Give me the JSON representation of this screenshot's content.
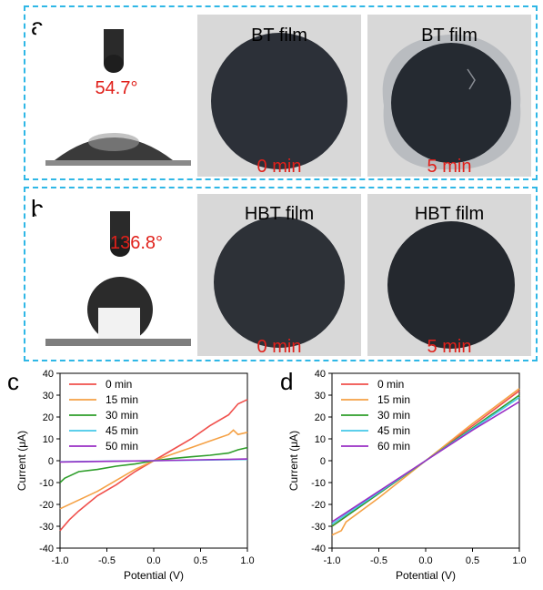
{
  "colors": {
    "panel_border": "#2fb7e6",
    "annotation_red": "#e0201a",
    "film_dark": "#2b2f36",
    "paper_bg": "#d6d6d6"
  },
  "panel_a": {
    "letter": "a",
    "contact_angle": "54.7°",
    "photos": [
      {
        "label": "BT film",
        "time": "0 min"
      },
      {
        "label": "BT film",
        "time": "5 min"
      }
    ]
  },
  "panel_b": {
    "letter": "b",
    "contact_angle": "136.8°",
    "photos": [
      {
        "label": "HBT film",
        "time": "0 min"
      },
      {
        "label": "HBT film",
        "time": "5 min"
      }
    ]
  },
  "chart_data": [
    {
      "panel": "c",
      "type": "line",
      "xlabel": "Potential (V)",
      "ylabel": "Current (μA)",
      "xlim": [
        -1.0,
        1.0
      ],
      "ylim": [
        -40,
        40
      ],
      "xticks": [
        "-1.0",
        "-0.5",
        "0.0",
        "0.5",
        "1.0"
      ],
      "yticks": [
        "-40",
        "-30",
        "-20",
        "-10",
        "0",
        "10",
        "20",
        "30",
        "40"
      ],
      "legend_position": "top-left",
      "grid": false,
      "series": [
        {
          "name": "0 min",
          "color": "#f0504c",
          "points": [
            [
              -1.0,
              -32
            ],
            [
              -0.9,
              -27
            ],
            [
              -0.8,
              -23
            ],
            [
              -0.6,
              -16
            ],
            [
              -0.4,
              -11
            ],
            [
              -0.2,
              -5
            ],
            [
              0.0,
              0
            ],
            [
              0.2,
              5
            ],
            [
              0.4,
              10
            ],
            [
              0.6,
              16
            ],
            [
              0.8,
              21
            ],
            [
              0.9,
              26
            ],
            [
              1.0,
              28
            ]
          ]
        },
        {
          "name": "15 min",
          "color": "#f5a145",
          "points": [
            [
              -1.0,
              -22
            ],
            [
              -0.8,
              -18
            ],
            [
              -0.6,
              -14
            ],
            [
              -0.4,
              -9
            ],
            [
              -0.2,
              -4
            ],
            [
              0.0,
              0
            ],
            [
              0.2,
              3
            ],
            [
              0.4,
              6
            ],
            [
              0.6,
              9
            ],
            [
              0.8,
              12
            ],
            [
              0.85,
              14
            ],
            [
              0.9,
              12
            ],
            [
              1.0,
              13
            ]
          ]
        },
        {
          "name": "30 min",
          "color": "#2e9e2a",
          "points": [
            [
              -1.0,
              -10
            ],
            [
              -0.95,
              -8
            ],
            [
              -0.9,
              -7
            ],
            [
              -0.8,
              -5
            ],
            [
              -0.6,
              -4
            ],
            [
              -0.4,
              -2.5
            ],
            [
              -0.2,
              -1.5
            ],
            [
              0.0,
              0
            ],
            [
              0.2,
              1
            ],
            [
              0.4,
              1.8
            ],
            [
              0.6,
              2.5
            ],
            [
              0.8,
              3.5
            ],
            [
              0.9,
              5
            ],
            [
              1.0,
              6
            ]
          ]
        },
        {
          "name": "45 min",
          "color": "#45c8e8",
          "points": [
            [
              -1.0,
              -0.5
            ],
            [
              -0.5,
              -0.25
            ],
            [
              0.0,
              0
            ],
            [
              0.5,
              0.3
            ],
            [
              1.0,
              0.6
            ]
          ]
        },
        {
          "name": "50 min",
          "color": "#9a2fc4",
          "points": [
            [
              -1.0,
              -0.6
            ],
            [
              -0.5,
              -0.3
            ],
            [
              0.0,
              0
            ],
            [
              0.5,
              0.4
            ],
            [
              1.0,
              0.8
            ]
          ]
        }
      ]
    },
    {
      "panel": "d",
      "type": "line",
      "xlabel": "Potential (V)",
      "ylabel": "Current (μA)",
      "xlim": [
        -1.0,
        1.0
      ],
      "ylim": [
        -40,
        40
      ],
      "xticks": [
        "-1.0",
        "-0.5",
        "0.0",
        "0.5",
        "1.0"
      ],
      "yticks": [
        "-40",
        "-30",
        "-20",
        "-10",
        "0",
        "10",
        "20",
        "30",
        "40"
      ],
      "legend_position": "top-left",
      "grid": false,
      "series": [
        {
          "name": "0 min",
          "color": "#f0504c",
          "points": [
            [
              -1.0,
              -30
            ],
            [
              -0.5,
              -15
            ],
            [
              0.0,
              0
            ],
            [
              0.5,
              16
            ],
            [
              1.0,
              32
            ]
          ]
        },
        {
          "name": "15 min",
          "color": "#f5a145",
          "points": [
            [
              -1.0,
              -34
            ],
            [
              -0.9,
              -32
            ],
            [
              -0.85,
              -28
            ],
            [
              -0.5,
              -17
            ],
            [
              0.0,
              0
            ],
            [
              0.5,
              17
            ],
            [
              1.0,
              33
            ]
          ]
        },
        {
          "name": "30 min",
          "color": "#2e9e2a",
          "points": [
            [
              -1.0,
              -30
            ],
            [
              -0.5,
              -15
            ],
            [
              0.0,
              0
            ],
            [
              0.5,
              15
            ],
            [
              1.0,
              30
            ]
          ]
        },
        {
          "name": "45 min",
          "color": "#45c8e8",
          "points": [
            [
              -1.0,
              -29
            ],
            [
              -0.5,
              -14.5
            ],
            [
              0.0,
              0
            ],
            [
              0.5,
              14.5
            ],
            [
              1.0,
              29
            ]
          ]
        },
        {
          "name": "60 min",
          "color": "#9a2fc4",
          "points": [
            [
              -1.0,
              -28
            ],
            [
              -0.5,
              -14
            ],
            [
              0.0,
              0
            ],
            [
              0.5,
              14
            ],
            [
              1.0,
              27
            ]
          ]
        }
      ]
    }
  ]
}
